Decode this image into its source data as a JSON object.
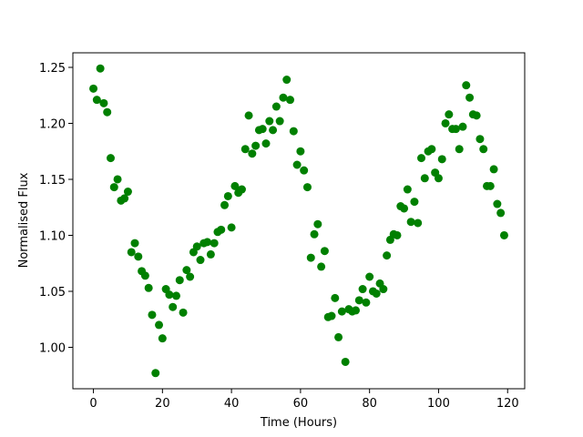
{
  "chart_data": {
    "type": "scatter",
    "xlabel": "Time (Hours)",
    "ylabel": "Normalised Flux",
    "x": [
      0,
      1,
      2,
      3,
      4,
      5,
      6,
      7,
      8,
      9,
      10,
      11,
      12,
      13,
      14,
      15,
      16,
      17,
      18,
      19,
      20,
      21,
      22,
      23,
      24,
      25,
      26,
      27,
      28,
      29,
      30,
      31,
      32,
      33,
      34,
      35,
      36,
      37,
      38,
      39,
      40,
      41,
      42,
      43,
      44,
      45,
      46,
      47,
      48,
      49,
      50,
      51,
      52,
      53,
      54,
      55,
      56,
      57,
      58,
      59,
      60,
      61,
      62,
      63,
      64,
      65,
      66,
      67,
      68,
      69,
      70,
      71,
      72,
      73,
      74,
      75,
      76,
      77,
      78,
      79,
      80,
      81,
      82,
      83,
      84,
      85,
      86,
      87,
      88,
      89,
      90,
      91,
      92,
      93,
      94,
      95,
      96,
      97,
      98,
      99,
      100,
      101,
      102,
      103,
      104,
      105,
      106,
      107,
      108,
      109,
      110,
      111,
      112,
      113,
      114,
      115,
      116,
      117,
      118,
      119
    ],
    "series": [
      {
        "color": "#008000",
        "values": [
          1.231,
          1.221,
          1.249,
          1.218,
          1.21,
          1.169,
          1.143,
          1.15,
          1.131,
          1.133,
          1.139,
          1.085,
          1.093,
          1.081,
          1.068,
          1.064,
          1.053,
          1.029,
          0.977,
          1.02,
          1.008,
          1.052,
          1.047,
          1.036,
          1.046,
          1.06,
          1.031,
          1.069,
          1.063,
          1.085,
          1.09,
          1.078,
          1.093,
          1.094,
          1.083,
          1.093,
          1.103,
          1.105,
          1.127,
          1.135,
          1.107,
          1.144,
          1.138,
          1.141,
          1.177,
          1.207,
          1.173,
          1.18,
          1.194,
          1.195,
          1.182,
          1.202,
          1.194,
          1.215,
          1.202,
          1.223,
          1.239,
          1.221,
          1.193,
          1.163,
          1.175,
          1.158,
          1.143,
          1.08,
          1.101,
          1.11,
          1.072,
          1.086,
          1.027,
          1.028,
          1.044,
          1.009,
          1.032,
          0.987,
          1.034,
          1.032,
          1.033,
          1.042,
          1.052,
          1.04,
          1.063,
          1.05,
          1.048,
          1.057,
          1.052,
          1.082,
          1.096,
          1.101,
          1.1,
          1.126,
          1.124,
          1.141,
          1.112,
          1.13,
          1.111,
          1.169,
          1.151,
          1.175,
          1.177,
          1.156,
          1.151,
          1.168,
          1.2,
          1.208,
          1.195,
          1.195,
          1.177,
          1.197,
          1.234,
          1.223,
          1.208,
          1.207,
          1.186,
          1.177,
          1.144,
          1.144,
          1.159,
          1.128,
          1.12,
          1.1
        ]
      }
    ],
    "xlim": [
      -5.95,
      124.95
    ],
    "ylim": [
      0.963,
      1.263
    ],
    "xticks": [
      0,
      20,
      40,
      60,
      80,
      100,
      120
    ],
    "yticks": [
      {
        "value": 1,
        "label": "1.00"
      },
      1.05,
      {
        "value": 1.1,
        "label": "1.10"
      },
      1.15,
      {
        "value": 1.2,
        "label": "1.20"
      },
      1.25
    ],
    "grid": false
  }
}
